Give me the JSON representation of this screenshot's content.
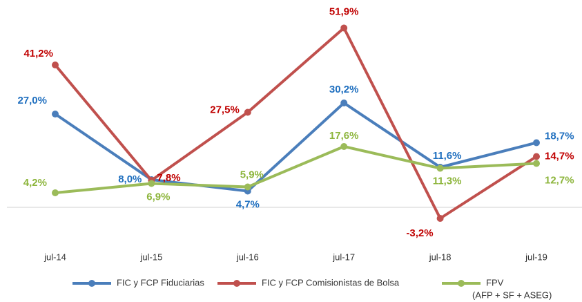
{
  "chart_data": {
    "type": "line",
    "categories": [
      "jul-14",
      "jul-15",
      "jul-16",
      "jul-17",
      "jul-18",
      "jul-19"
    ],
    "series": [
      {
        "name": "FIC y FCP Fiduciarias",
        "color": "#4a7ebb",
        "label_color": "#1f6fbf",
        "values": [
          27.0,
          8.0,
          4.7,
          30.2,
          11.6,
          18.7
        ],
        "value_labels": [
          "27,0%",
          "8,0%",
          "4,7%",
          "30,2%",
          "11,6%",
          "18,7%"
        ]
      },
      {
        "name": "FIC y FCP Comisionistas de Bolsa",
        "color": "#c0504d",
        "label_color": "#c00000",
        "values": [
          41.2,
          7.8,
          27.5,
          51.9,
          -3.2,
          14.7
        ],
        "value_labels": [
          "41,2%",
          "7,8%",
          "27,5%",
          "51,9%",
          "-3,2%",
          "14,7%"
        ]
      },
      {
        "name": "FPV",
        "name_note": "(AFP + SF + ASEG)",
        "color": "#9bbb59",
        "label_color": "#8db53c",
        "values": [
          4.2,
          6.9,
          5.9,
          17.6,
          11.3,
          12.7
        ],
        "value_labels": [
          "4,2%",
          "6,9%",
          "5,9%",
          "17,6%",
          "11,3%",
          "12,7%"
        ]
      }
    ],
    "ylim": [
      -10,
      55
    ],
    "legend": "bottom"
  }
}
